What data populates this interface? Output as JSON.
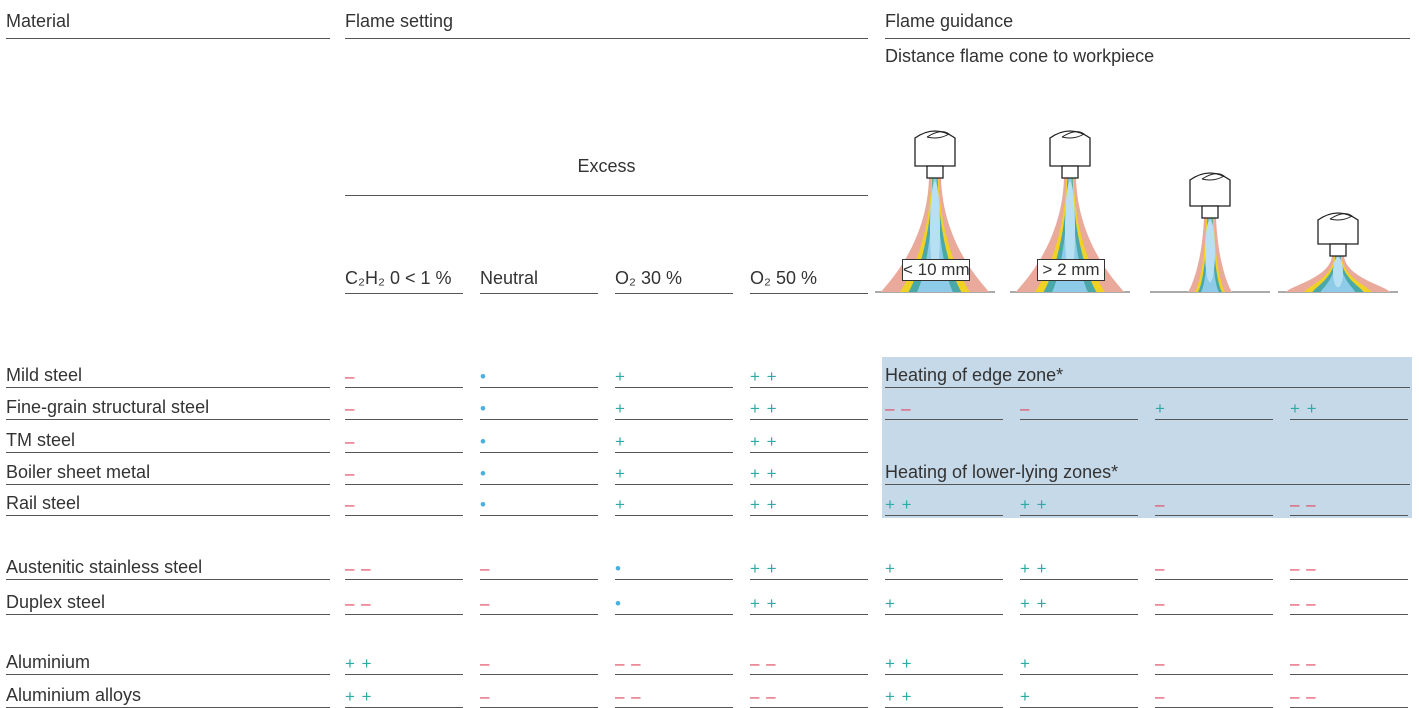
{
  "headers": {
    "material": "Material",
    "flame_setting": "Flame setting",
    "flame_guidance": "Flame guidance",
    "distance": "Distance flame cone to workpiece",
    "excess": "Excess"
  },
  "setting_columns": [
    "C₂H₂ 0 < 1 %",
    "Neutral",
    "O₂ 30 %",
    "O₂ 50 %"
  ],
  "distance_labels": [
    "< 10 mm",
    "> 2 mm"
  ],
  "rows": [
    {
      "material": "Mild steel",
      "setting": [
        "–",
        "•",
        "+",
        "+ +"
      ],
      "zone": "Heating of edge zone*"
    },
    {
      "material": "Fine-grain structural steel",
      "setting": [
        "–",
        "•",
        "+",
        "+ +"
      ],
      "guidance": [
        "– –",
        "–",
        "+",
        "+ +"
      ]
    },
    {
      "material": "TM steel",
      "setting": [
        "–",
        "•",
        "+",
        "+ +"
      ]
    },
    {
      "material": "Boiler sheet metal",
      "setting": [
        "–",
        "•",
        "+",
        "+ +"
      ],
      "zone": "Heating of lower-lying zones*"
    },
    {
      "material": "Rail steel",
      "setting": [
        "–",
        "•",
        "+",
        "+ +"
      ],
      "guidance": [
        "+ +",
        "+ +",
        "–",
        "– –"
      ]
    },
    {
      "material": "Austenitic stainless steel",
      "setting": [
        "– –",
        "–",
        "•",
        "+ +"
      ],
      "guidance": [
        "+",
        "+ +",
        "–",
        "– –"
      ]
    },
    {
      "material": "Duplex steel",
      "setting": [
        "– –",
        "–",
        "•",
        "+ +"
      ],
      "guidance": [
        "+",
        "+ +",
        "–",
        "– –"
      ]
    },
    {
      "material": "Aluminium",
      "setting": [
        "+ +",
        "–",
        "– –",
        "– –"
      ],
      "guidance": [
        "+ +",
        "+",
        "–",
        "– –"
      ]
    },
    {
      "material": "Aluminium alloys",
      "setting": [
        "+ +",
        "–",
        "– –",
        "– –"
      ],
      "guidance": [
        "+ +",
        "+",
        "–",
        "– –"
      ]
    }
  ]
}
